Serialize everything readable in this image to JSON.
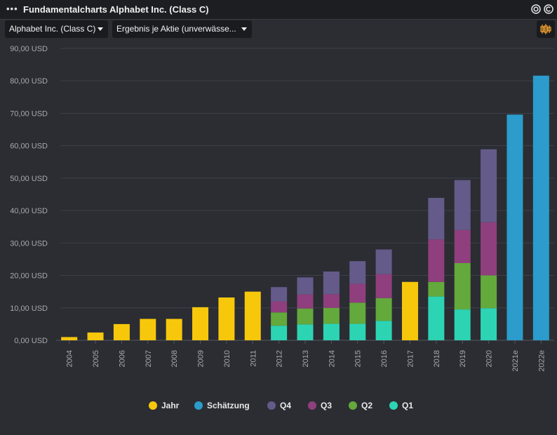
{
  "window": {
    "title": "Fundamentalcharts Alphabet Inc. (Class C)",
    "menu_icon": "ellipsis-icon",
    "icons": [
      "target-icon",
      "copyright-icon"
    ]
  },
  "toolbar": {
    "company_select": "Alphabet Inc. (Class C)",
    "metric_select": "Ergebnis je Aktie (unverwässe...",
    "settings_icon": "candlestick-settings-icon"
  },
  "colors": {
    "Jahr": "#f7c70b",
    "Schätzung": "#2b9ccb",
    "Q4": "#645b8a",
    "Q3": "#8f3f7d",
    "Q2": "#63a93b",
    "Q1": "#2dd4b4",
    "background": "#2b2d33",
    "grid": "#3d4047"
  },
  "chart_data": {
    "type": "bar",
    "stacked": true,
    "grid": true,
    "legend_position": "bottom",
    "ylim": [
      0,
      90
    ],
    "y_ticks": [
      "0,00 USD",
      "10,00 USD",
      "20,00 USD",
      "30,00 USD",
      "40,00 USD",
      "50,00 USD",
      "60,00 USD",
      "70,00 USD",
      "80,00 USD",
      "90,00 USD"
    ],
    "categories": [
      "2004",
      "2005",
      "2006",
      "2007",
      "2008",
      "2009",
      "2010",
      "2011",
      "2012",
      "2013",
      "2014",
      "2015",
      "2016",
      "2017",
      "2018",
      "2019",
      "2020",
      "2021e",
      "2022e"
    ],
    "series": [
      {
        "name": "Jahr",
        "values": [
          1.0,
          2.4,
          5.0,
          6.6,
          6.6,
          10.2,
          13.2,
          15.0,
          null,
          null,
          null,
          null,
          null,
          18.0,
          null,
          null,
          null,
          null,
          null
        ]
      },
      {
        "name": "Schätzung",
        "values": [
          null,
          null,
          null,
          null,
          null,
          null,
          null,
          null,
          null,
          null,
          null,
          null,
          null,
          null,
          null,
          null,
          null,
          69.6,
          81.6
        ]
      },
      {
        "name": "Q1",
        "values": [
          null,
          null,
          null,
          null,
          null,
          null,
          null,
          null,
          4.5,
          4.9,
          5.1,
          5.1,
          6.0,
          null,
          13.5,
          9.5,
          9.9,
          null,
          null
        ]
      },
      {
        "name": "Q2",
        "values": [
          null,
          null,
          null,
          null,
          null,
          null,
          null,
          null,
          4.1,
          4.9,
          4.9,
          6.5,
          7.0,
          null,
          4.5,
          14.3,
          10.1,
          null,
          null
        ]
      },
      {
        "name": "Q3",
        "values": [
          null,
          null,
          null,
          null,
          null,
          null,
          null,
          null,
          3.4,
          4.3,
          4.2,
          5.8,
          7.4,
          null,
          13.1,
          10.2,
          16.4,
          null,
          null
        ]
      },
      {
        "name": "Q4",
        "values": [
          null,
          null,
          null,
          null,
          null,
          null,
          null,
          null,
          4.4,
          5.3,
          7.0,
          7.0,
          7.6,
          null,
          12.8,
          15.4,
          22.5,
          null,
          null
        ]
      }
    ],
    "legend": [
      "Jahr",
      "Schätzung",
      "Q4",
      "Q3",
      "Q2",
      "Q1"
    ]
  }
}
